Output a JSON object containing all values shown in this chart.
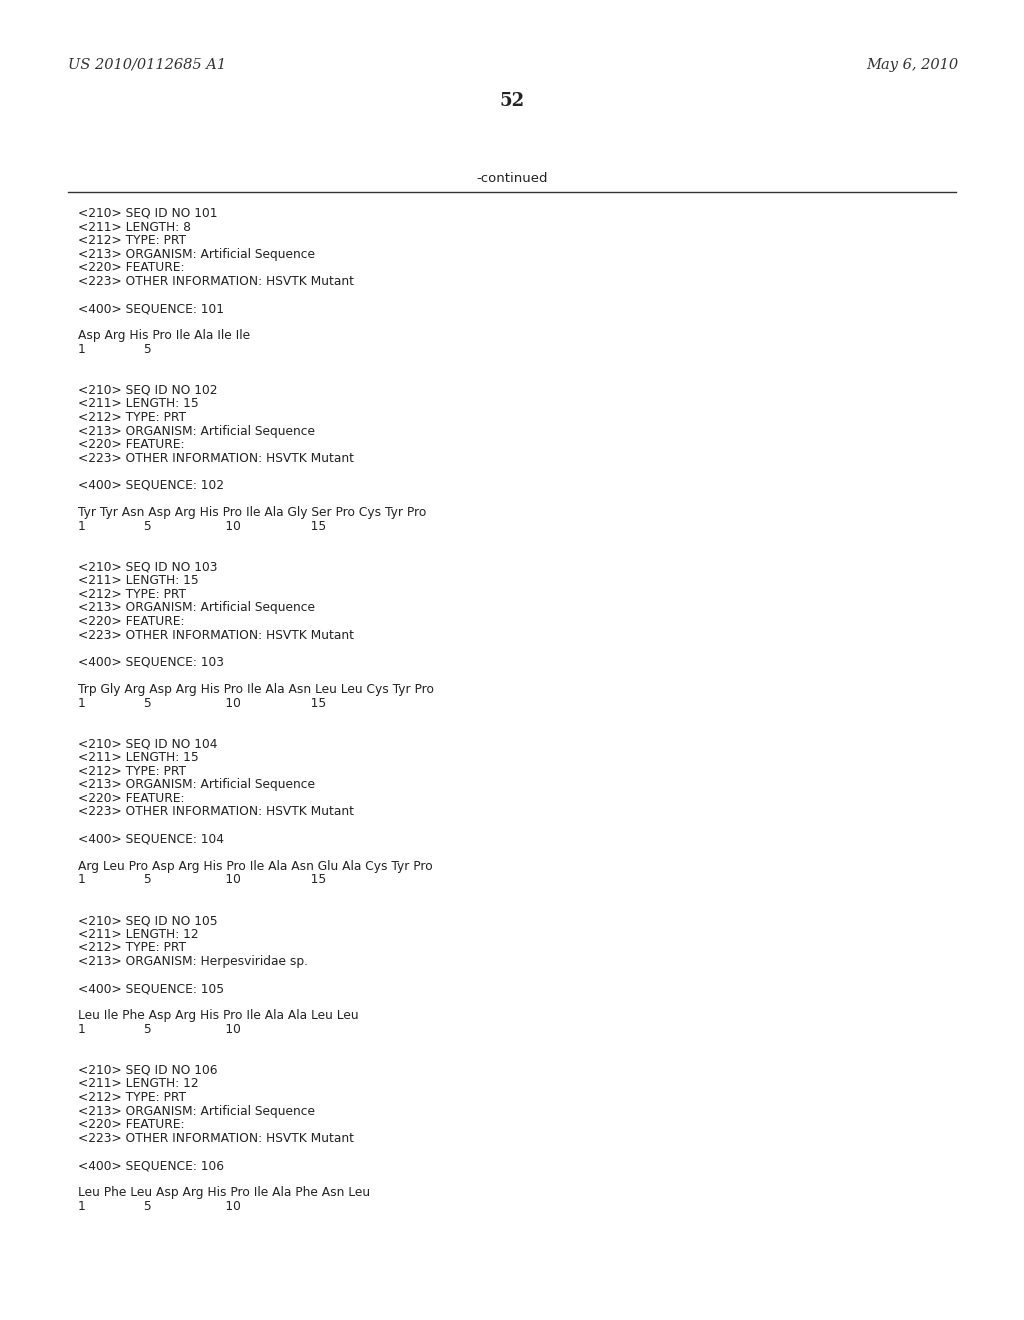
{
  "background_color": "#ffffff",
  "header_left": "US 2010/0112685 A1",
  "header_right": "May 6, 2010",
  "page_number": "52",
  "continued_label": "-continued",
  "content": [
    "<210> SEQ ID NO 101",
    "<211> LENGTH: 8",
    "<212> TYPE: PRT",
    "<213> ORGANISM: Artificial Sequence",
    "<220> FEATURE:",
    "<223> OTHER INFORMATION: HSVTK Mutant",
    "",
    "<400> SEQUENCE: 101",
    "",
    "Asp Arg His Pro Ile Ala Ile Ile",
    "1               5",
    "",
    "",
    "<210> SEQ ID NO 102",
    "<211> LENGTH: 15",
    "<212> TYPE: PRT",
    "<213> ORGANISM: Artificial Sequence",
    "<220> FEATURE:",
    "<223> OTHER INFORMATION: HSVTK Mutant",
    "",
    "<400> SEQUENCE: 102",
    "",
    "Tyr Tyr Asn Asp Arg His Pro Ile Ala Gly Ser Pro Cys Tyr Pro",
    "1               5                   10                  15",
    "",
    "",
    "<210> SEQ ID NO 103",
    "<211> LENGTH: 15",
    "<212> TYPE: PRT",
    "<213> ORGANISM: Artificial Sequence",
    "<220> FEATURE:",
    "<223> OTHER INFORMATION: HSVTK Mutant",
    "",
    "<400> SEQUENCE: 103",
    "",
    "Trp Gly Arg Asp Arg His Pro Ile Ala Asn Leu Leu Cys Tyr Pro",
    "1               5                   10                  15",
    "",
    "",
    "<210> SEQ ID NO 104",
    "<211> LENGTH: 15",
    "<212> TYPE: PRT",
    "<213> ORGANISM: Artificial Sequence",
    "<220> FEATURE:",
    "<223> OTHER INFORMATION: HSVTK Mutant",
    "",
    "<400> SEQUENCE: 104",
    "",
    "Arg Leu Pro Asp Arg His Pro Ile Ala Asn Glu Ala Cys Tyr Pro",
    "1               5                   10                  15",
    "",
    "",
    "<210> SEQ ID NO 105",
    "<211> LENGTH: 12",
    "<212> TYPE: PRT",
    "<213> ORGANISM: Herpesviridae sp.",
    "",
    "<400> SEQUENCE: 105",
    "",
    "Leu Ile Phe Asp Arg His Pro Ile Ala Ala Leu Leu",
    "1               5                   10",
    "",
    "",
    "<210> SEQ ID NO 106",
    "<211> LENGTH: 12",
    "<212> TYPE: PRT",
    "<213> ORGANISM: Artificial Sequence",
    "<220> FEATURE:",
    "<223> OTHER INFORMATION: HSVTK Mutant",
    "",
    "<400> SEQUENCE: 106",
    "",
    "Leu Phe Leu Asp Arg His Pro Ile Ala Phe Asn Leu",
    "1               5                   10"
  ]
}
